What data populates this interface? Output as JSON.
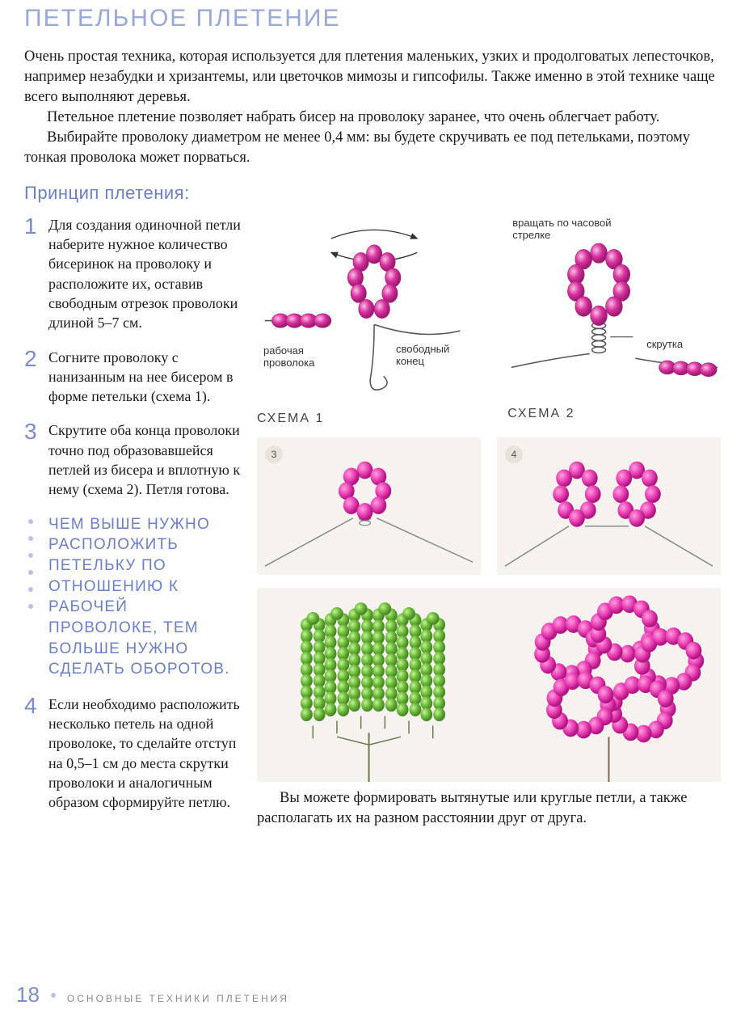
{
  "title": "ПЕТЕЛЬНОЕ ПЛЕТЕНИЕ",
  "intro": {
    "p1": "Очень простая техника, которая используется для плетения маленьких, узких и продолговатых лепесточков, например незабудки и хризантемы, или цветочков мимозы и гипсофилы. Также именно в этой технике чаще всего выполняют деревья.",
    "p2": "Петельное плетение позволяет набрать бисер на проволоку заранее, что очень облегчает работу.",
    "p3": "Выбирайте проволоку диаметром не менее 0,4 мм: вы будете скручивать ее под петельками, поэтому тонкая проволока может порваться."
  },
  "subtitle": "Принцип плетения:",
  "steps": {
    "s1": {
      "num": "1",
      "text": "Для создания одиночной петли наберите нужное количество бисеринок на проволоку и расположите их, оставив свободным отрезок проволоки длиной 5–7 см."
    },
    "s2": {
      "num": "2",
      "text": "Согните проволоку с нанизанным на нее бисером в форме петельки (схема 1)."
    },
    "s3": {
      "num": "3",
      "text": "Скрутите оба конца проволоки точно под образовавшейся петлей из бисера и вплотную к нему (схема 2). Петля готова."
    },
    "s4": {
      "num": "4",
      "text": "Если необходимо расположить несколько петель на одной проволоке, то сделайте отступ на 0,5–1 см до места скрутки проволоки и аналогичным образом сформируйте петлю."
    }
  },
  "tip": "Чем выше нужно расположить петельку по отношению к рабочей проволоке, тем больше нужно сделать оборотов.",
  "diagrams": {
    "d1": {
      "caption": "СХЕМА 1",
      "label_rotate": "вращать по часовой стрелке",
      "label_work": "рабочая проволока",
      "label_free": "свободный конец"
    },
    "d2": {
      "caption": "СХЕМА 2",
      "label_twist": "скрутка"
    },
    "bead_fill": "#d933a0",
    "bead_stroke": "#a01b74",
    "bead_hl": "#f8c1e4",
    "bead_green_fill": "#6fbd3b",
    "bead_green_stroke": "#4a8a24",
    "wire_color": "#555555"
  },
  "photos": {
    "p3": "3",
    "p4": "4"
  },
  "bottom_note": "Вы можете формировать вытянутые или круглые петли, а также располагать их на разном расстоянии друг от друга.",
  "footer": {
    "page": "18",
    "section": "ОСНОВНЫЕ ТЕХНИКИ ПЛЕТЕНИЯ"
  },
  "colors": {
    "title": "#9ba8d6",
    "accent": "#6b7fc4",
    "text": "#1a1a1a",
    "photo_bg": "#f6f3ef"
  }
}
